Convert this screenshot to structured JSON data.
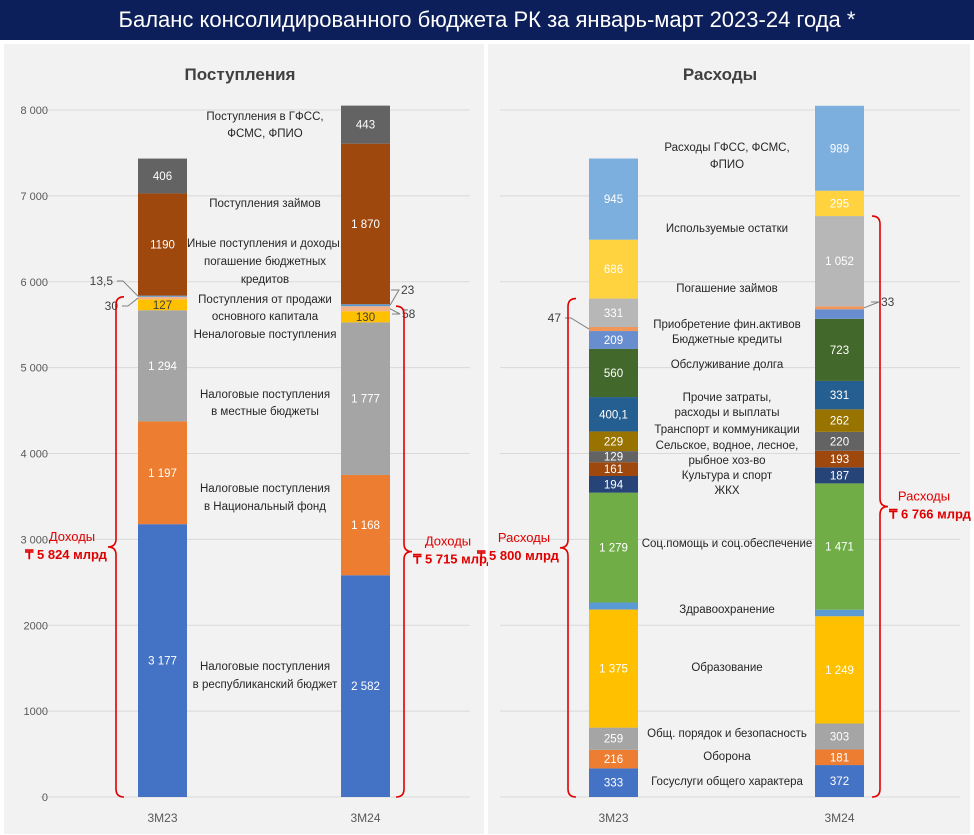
{
  "title": "Баланс консолидированного бюджета РК за январь-март 2023-24 года *",
  "chart_data": [
    {
      "type": "bar",
      "stacked": true,
      "title": "Поступления",
      "categories": [
        "3М23",
        "3М24"
      ],
      "ylim": [
        0,
        8000
      ],
      "yticks": [
        "0",
        "1000",
        "2000",
        "3 000",
        "4 000",
        "5 000",
        "6 000",
        "7 000",
        "8 000"
      ],
      "grid": true,
      "series": [
        {
          "name": [
            "Налоговые поступления",
            "в республиканский бюджет"
          ],
          "values": [
            3177,
            2582
          ],
          "labels": [
            "3 177",
            "2 582"
          ],
          "color": "#4472c4"
        },
        {
          "name": [
            "Налоговые поступления",
            "в Национальный фонд"
          ],
          "values": [
            1197,
            1168
          ],
          "labels": [
            "1 197",
            "1 168"
          ],
          "color": "#ed7d31"
        },
        {
          "name": [
            "Налоговые поступления",
            "в местные бюджеты"
          ],
          "values": [
            1294,
            1777
          ],
          "labels": [
            "1 294",
            "1 777"
          ],
          "color": "#a5a5a5"
        },
        {
          "name": [
            "Неналоговые поступления"
          ],
          "values": [
            127,
            130
          ],
          "labels": [
            "127",
            "130"
          ],
          "color": "#ffc000"
        },
        {
          "name": [
            "Поступления от продажи",
            "основного капитала"
          ],
          "values": [
            30,
            58
          ],
          "labels": [
            "30",
            "58"
          ],
          "color": "#f4b183"
        },
        {
          "name": [
            "Иные поступления и доходы,",
            "погашение бюджетных",
            "кредитов"
          ],
          "values": [
            13.5,
            23
          ],
          "labels": [
            "13,5",
            "23"
          ],
          "color": "#5b9bd5"
        },
        {
          "name": [
            "Поступления займов"
          ],
          "values": [
            1190,
            1870
          ],
          "labels": [
            "1190",
            "1 870"
          ],
          "color": "#9e480e"
        },
        {
          "name": [
            "Поступления в ГФСС,",
            "ФСМС, ФПИО"
          ],
          "values": [
            406,
            443
          ],
          "labels": [
            "406",
            "443"
          ],
          "color": "#636363"
        }
      ],
      "annotations": [
        {
          "label": "Доходы",
          "value": "₸ 5 824 млрд"
        },
        {
          "label": "Доходы",
          "value": "₸ 5 715 млрд"
        }
      ]
    },
    {
      "type": "bar",
      "stacked": true,
      "title": "Расходы",
      "categories": [
        "3М23",
        "3М24"
      ],
      "ylim": [
        0,
        8000
      ],
      "grid": true,
      "series": [
        {
          "name": [
            "Госуслуги общего характера"
          ],
          "values": [
            333,
            372
          ],
          "labels": [
            "333",
            "372"
          ],
          "color": "#4472c4"
        },
        {
          "name": [
            "Оборона"
          ],
          "values": [
            216,
            181
          ],
          "labels": [
            "216",
            "181"
          ],
          "color": "#ed7d31"
        },
        {
          "name": [
            "Общ. порядок и безопасность"
          ],
          "values": [
            259,
            303
          ],
          "labels": [
            "259",
            "303"
          ],
          "color": "#a5a5a5"
        },
        {
          "name": [
            "Образование"
          ],
          "values": [
            1375,
            1249
          ],
          "labels": [
            "1 375",
            "1 249"
          ],
          "color": "#ffc000"
        },
        {
          "name": [
            "Здравоохранение"
          ],
          "values": [
            82,
            76
          ],
          "labels": [
            "82",
            "76"
          ],
          "color": "#5b9bd5"
        },
        {
          "name": [
            "Соц.помощь и соц.обеспечение"
          ],
          "values": [
            1279,
            1471
          ],
          "labels": [
            "1 279",
            "1 471"
          ],
          "color": "#70ad47"
        },
        {
          "name": [
            "ЖКХ"
          ],
          "values": [
            194,
            187
          ],
          "labels": [
            "194",
            "187"
          ],
          "color": "#264478"
        },
        {
          "name": [
            "Культура и спорт"
          ],
          "values": [
            161,
            193
          ],
          "labels": [
            "161",
            "193"
          ],
          "color": "#9e480e"
        },
        {
          "name": [
            "Сельское, водное, лесное,",
            "рыбное хоз-во"
          ],
          "values": [
            129,
            220
          ],
          "labels": [
            "129",
            "220"
          ],
          "color": "#636363"
        },
        {
          "name": [
            "Транспорт и коммуникации"
          ],
          "values": [
            229,
            262
          ],
          "labels": [
            "229",
            "262"
          ],
          "color": "#997300"
        },
        {
          "name": [
            "Прочие затраты,",
            "расходы и выплаты"
          ],
          "values": [
            400.1,
            331
          ],
          "labels": [
            "400,1",
            "331"
          ],
          "color": "#255e91"
        },
        {
          "name": [
            "Обслуживание долга"
          ],
          "values": [
            560,
            723
          ],
          "labels": [
            "560",
            "723"
          ],
          "color": "#43682b"
        },
        {
          "name": [
            "Бюджетные кредиты"
          ],
          "values": [
            209,
            112
          ],
          "labels": [
            "209",
            "112"
          ],
          "color": "#698ed0"
        },
        {
          "name": [
            "Приобретение фин.активов"
          ],
          "values": [
            47,
            33
          ],
          "labels": [
            "47",
            "33"
          ],
          "color": "#f1975a"
        },
        {
          "name": [
            "Погашение займов"
          ],
          "values": [
            331,
            1052
          ],
          "labels": [
            "331",
            "1 052"
          ],
          "color": "#b7b7b7"
        },
        {
          "name": [
            "Используемые остатки"
          ],
          "values": [
            686,
            295
          ],
          "labels": [
            "686",
            "295"
          ],
          "color": "#ffd23f"
        },
        {
          "name": [
            "Расходы ГФСС, ФСМС,",
            "ФПИО"
          ],
          "values": [
            945,
            989
          ],
          "labels": [
            "945",
            "989"
          ],
          "color": "#7cafdd"
        }
      ],
      "annotations": [
        {
          "label": "Расходы",
          "value": "₸ 5 800 млрд"
        },
        {
          "label": "Расходы",
          "value": "₸ 6 766 млрд"
        }
      ]
    }
  ],
  "colors": {
    "title_bg": "#0c1f5a",
    "panel_bg": "#f2f2f2",
    "bracket": "#e00000"
  }
}
